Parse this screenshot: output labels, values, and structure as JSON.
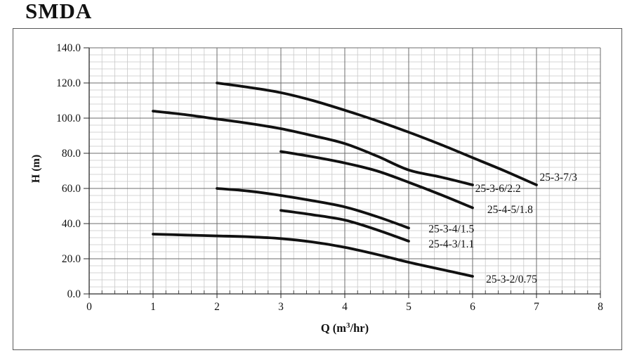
{
  "page_title": "SMDA",
  "chart_data": {
    "type": "line",
    "title": "SMDA",
    "xlabel": "Q (m³/hr)",
    "ylabel": "H (m)",
    "xlim": [
      0,
      8
    ],
    "ylim": [
      0,
      140
    ],
    "x_major_step": 1,
    "x_minor_step": 0.2,
    "y_major_step": 20,
    "y_minor_step": 4,
    "x_tick_labels": [
      "0",
      "1",
      "2",
      "3",
      "4",
      "5",
      "6",
      "7",
      "8"
    ],
    "y_tick_labels": [
      "0.0",
      "20.0",
      "40.0",
      "60.0",
      "80.0",
      "100.0",
      "120.0",
      "140.0"
    ],
    "grid": true,
    "legend": "inline-labels",
    "colors": {
      "curve": "#111111",
      "grid_minor": "#c8c8c8",
      "grid_major": "#6e6e6e",
      "axis": "#2a2a2a",
      "text": "#111111",
      "border": "#595959",
      "background": "#ffffff"
    },
    "series": [
      {
        "name": "25-3-7/3",
        "points": [
          [
            2,
            120
          ],
          [
            2.5,
            117.5
          ],
          [
            3,
            114.5
          ],
          [
            3.5,
            110
          ],
          [
            4,
            104.5
          ],
          [
            4.5,
            98.5
          ],
          [
            5,
            92
          ],
          [
            5.5,
            85
          ],
          [
            6,
            77.5
          ],
          [
            6.5,
            70
          ],
          [
            7,
            62
          ]
        ],
        "label_pos": [
          7.05,
          64.5
        ]
      },
      {
        "name": "25-3-6/2.2",
        "points": [
          [
            1,
            104
          ],
          [
            1.5,
            102
          ],
          [
            2,
            99.5
          ],
          [
            2.5,
            97
          ],
          [
            3,
            94
          ],
          [
            3.5,
            90
          ],
          [
            4,
            85.5
          ],
          [
            4.5,
            78.5
          ],
          [
            5,
            70.5
          ],
          [
            5.5,
            66.5
          ],
          [
            6,
            62
          ]
        ],
        "label_pos": [
          6.04,
          58
        ]
      },
      {
        "name": "25-4-5/1.8",
        "points": [
          [
            3,
            81
          ],
          [
            3.5,
            78
          ],
          [
            4,
            74.5
          ],
          [
            4.5,
            70
          ],
          [
            5,
            63.5
          ],
          [
            5.5,
            56.5
          ],
          [
            6,
            49
          ]
        ],
        "label_pos": [
          6.23,
          46
        ]
      },
      {
        "name": "25-3-4/1.5",
        "points": [
          [
            2,
            60
          ],
          [
            2.5,
            58.5
          ],
          [
            3,
            56
          ],
          [
            3.5,
            53
          ],
          [
            4,
            49.5
          ],
          [
            4.5,
            44
          ],
          [
            5,
            37.5
          ]
        ],
        "label_pos": [
          5.31,
          35
        ]
      },
      {
        "name": "25-4-3/1.1",
        "points": [
          [
            3,
            47.5
          ],
          [
            3.5,
            45
          ],
          [
            4,
            42
          ],
          [
            4.5,
            36.5
          ],
          [
            5,
            30
          ]
        ],
        "label_pos": [
          5.31,
          26.5
        ]
      },
      {
        "name": "25-3-2/0.75",
        "points": [
          [
            1,
            34
          ],
          [
            1.5,
            33.5
          ],
          [
            2,
            33
          ],
          [
            2.5,
            32.5
          ],
          [
            3,
            31.5
          ],
          [
            3.5,
            29.5
          ],
          [
            4,
            26.5
          ],
          [
            4.5,
            22.5
          ],
          [
            5,
            18
          ],
          [
            5.5,
            14
          ],
          [
            6,
            10
          ]
        ],
        "label_pos": [
          6.21,
          6.5
        ]
      }
    ]
  }
}
